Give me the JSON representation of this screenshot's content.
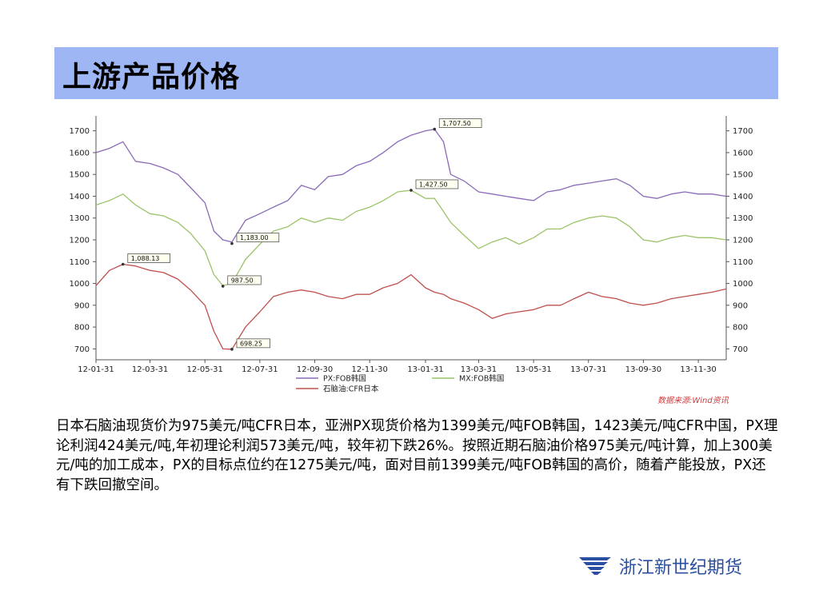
{
  "slide": {
    "title": "上游产品价格",
    "source_label": "数据来源:Wind资讯",
    "body_text": "日本石脑油现货价为975美元/吨CFR日本，亚洲PX现货价格为1399美元/吨FOB韩国，1423美元/吨CFR中国，PX理论利润424美元/吨,年初理论利润573美元/吨，较年初下跌26%。按照近期石脑油价格975美元/吨计算，加上300美元/吨的加工成本，PX的目标点位约在1275美元/吨，面对目前1399美元/吨FOB韩国的高价，随着产能投放，PX还有下跌回撤空间。",
    "logo_text": "浙江新世纪期货",
    "colors": {
      "title_bg": "#9fb6f5",
      "logo_blue": "#2a4fa0",
      "source_red": "#d03a3a"
    }
  },
  "chart_data": {
    "type": "line",
    "ylim": [
      650,
      1750
    ],
    "y_ticks": [
      700,
      800,
      900,
      1000,
      1100,
      1200,
      1300,
      1400,
      1500,
      1600,
      1700
    ],
    "x_ticks": [
      "12-01-31",
      "12-03-31",
      "12-05-31",
      "12-07-31",
      "12-09-30",
      "12-11-30",
      "13-01-31",
      "13-03-31",
      "13-05-31",
      "13-07-31",
      "13-09-30",
      "13-11-30"
    ],
    "x": [
      "12-01-31",
      "12-02-15",
      "12-03-01",
      "12-03-15",
      "12-03-31",
      "12-04-15",
      "12-05-01",
      "12-05-15",
      "12-05-31",
      "12-06-10",
      "12-06-20",
      "12-06-30",
      "12-07-15",
      "12-07-31",
      "12-08-15",
      "12-08-31",
      "12-09-15",
      "12-09-30",
      "12-10-15",
      "12-10-31",
      "12-11-15",
      "12-11-30",
      "12-12-15",
      "12-12-31",
      "13-01-15",
      "13-01-31",
      "13-02-10",
      "13-02-20",
      "13-02-28",
      "13-03-15",
      "13-03-31",
      "13-04-15",
      "13-04-30",
      "13-05-15",
      "13-05-31",
      "13-06-15",
      "13-06-30",
      "13-07-15",
      "13-07-31",
      "13-08-15",
      "13-08-31",
      "13-09-15",
      "13-09-30",
      "13-10-15",
      "13-10-31",
      "13-11-15",
      "13-11-30",
      "13-12-15",
      "13-12-31"
    ],
    "series": [
      {
        "name": "PX:FOB韩国",
        "color": "#8a6ab8",
        "values": [
          1600,
          1620,
          1650,
          1560,
          1550,
          1530,
          1500,
          1440,
          1370,
          1240,
          1200,
          1190,
          1290,
          1320,
          1350,
          1380,
          1450,
          1430,
          1490,
          1500,
          1540,
          1560,
          1600,
          1650,
          1680,
          1700,
          1707.5,
          1650,
          1500,
          1470,
          1420,
          1410,
          1400,
          1390,
          1380,
          1420,
          1430,
          1450,
          1460,
          1470,
          1480,
          1450,
          1400,
          1390,
          1410,
          1420,
          1410,
          1410,
          1400
        ]
      },
      {
        "name": "MX:FOB韩国",
        "color": "#9cc36a",
        "values": [
          1360,
          1380,
          1410,
          1360,
          1320,
          1310,
          1280,
          1230,
          1150,
          1040,
          990,
          1000,
          1110,
          1180,
          1240,
          1260,
          1300,
          1280,
          1300,
          1290,
          1330,
          1350,
          1380,
          1420,
          1427.5,
          1390,
          1390,
          1330,
          1280,
          1220,
          1160,
          1190,
          1210,
          1180,
          1210,
          1250,
          1250,
          1280,
          1300,
          1310,
          1300,
          1260,
          1200,
          1190,
          1210,
          1220,
          1210,
          1210,
          1200
        ]
      },
      {
        "name": "石脑油:CFR日本",
        "color": "#c0504d",
        "values": [
          990,
          1060,
          1088.13,
          1080,
          1060,
          1050,
          1020,
          970,
          900,
          780,
          700,
          698.25,
          800,
          870,
          940,
          960,
          970,
          960,
          940,
          930,
          950,
          950,
          980,
          1000,
          1040,
          980,
          960,
          950,
          930,
          910,
          880,
          840,
          860,
          870,
          880,
          900,
          900,
          930,
          960,
          940,
          930,
          910,
          900,
          910,
          930,
          940,
          950,
          960,
          975
        ]
      }
    ],
    "annotations": [
      {
        "label": "1,707.50",
        "series": "PX:FOB韩国",
        "x": "13-02-10",
        "value": 1707.5
      },
      {
        "label": "1,183.00",
        "series": "PX:FOB韩国",
        "x": "12-06-30",
        "value": 1183
      },
      {
        "label": "1,427.50",
        "series": "MX:FOB韩国",
        "x": "13-01-15",
        "value": 1427.5
      },
      {
        "label": "987.50",
        "series": "MX:FOB韩国",
        "x": "12-06-20",
        "value": 987.5
      },
      {
        "label": "1,088.13",
        "series": "石脑油:CFR日本",
        "x": "12-03-01",
        "value": 1088.13
      },
      {
        "label": "698.25",
        "series": "石脑油:CFR日本",
        "x": "12-06-30",
        "value": 698.25
      }
    ],
    "grid": false,
    "legend_position": "bottom"
  }
}
